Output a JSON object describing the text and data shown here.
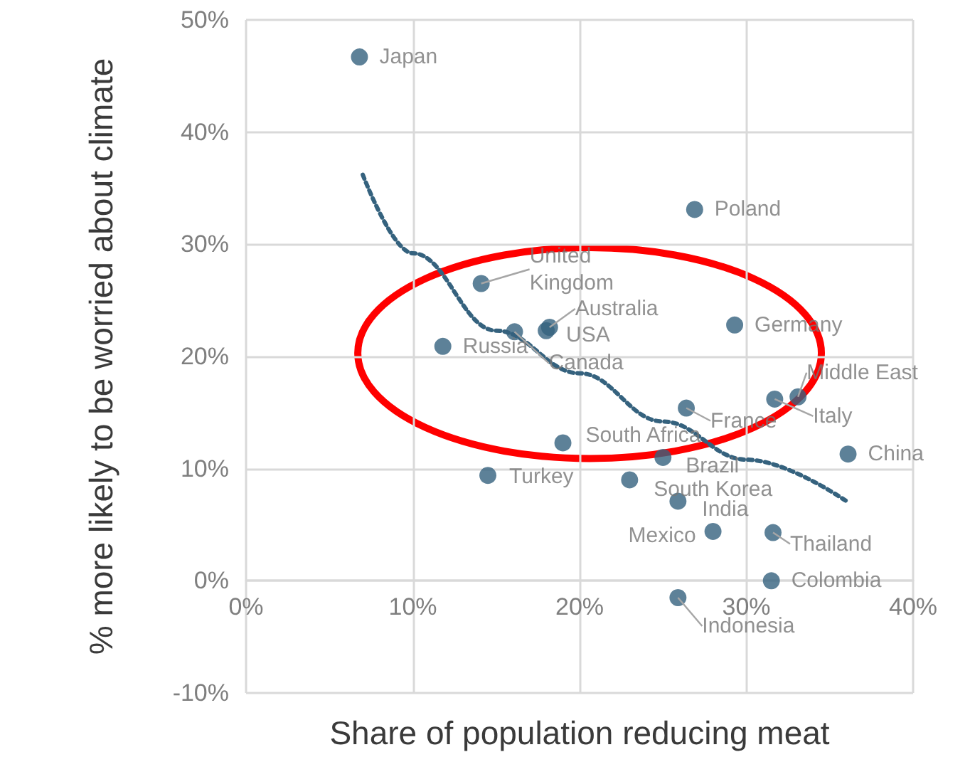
{
  "chart_data": {
    "type": "scatter",
    "xlabel": "Share of population reducing meat",
    "ylabel": "% more likely to be worried about climate",
    "xlim": [
      0,
      40
    ],
    "ylim": [
      -10,
      50
    ],
    "xticks": [
      {
        "value": 0,
        "label": "0%"
      },
      {
        "value": 10,
        "label": "10%"
      },
      {
        "value": 20,
        "label": "20%"
      },
      {
        "value": 30,
        "label": "30%"
      },
      {
        "value": 40,
        "label": "40%"
      }
    ],
    "yticks": [
      {
        "value": -10,
        "label": "-10%"
      },
      {
        "value": 0,
        "label": "0%"
      },
      {
        "value": 10,
        "label": "10%"
      },
      {
        "value": 20,
        "label": "20%"
      },
      {
        "value": 30,
        "label": "30%"
      },
      {
        "value": 40,
        "label": "40%"
      },
      {
        "value": 50,
        "label": "50%"
      }
    ],
    "grid": true,
    "marker": "circle",
    "series": [
      {
        "type": "scatter",
        "color": "#35627e",
        "x": [
          6.8,
          26.9,
          14.1,
          11.8,
          16.1,
          18.0,
          18.2,
          29.3,
          26.4,
          33.1,
          31.7,
          36.1,
          19.0,
          25.0,
          14.5,
          23.0,
          25.9,
          28.0,
          31.6,
          31.5,
          25.9
        ],
        "values": [
          46.7,
          33.1,
          26.5,
          20.9,
          22.2,
          22.3,
          22.6,
          22.8,
          15.4,
          16.4,
          16.2,
          11.3,
          12.3,
          11.0,
          9.4,
          9.0,
          7.1,
          4.4,
          4.3,
          0,
          -1.5
        ]
      },
      {
        "type": "line",
        "color": "#35627e",
        "line_style": "dotted",
        "marker": "none",
        "x": [
          7,
          10,
          15,
          20,
          25,
          30,
          36
        ],
        "values": [
          36.2,
          29.2,
          22.3,
          18.5,
          14.2,
          10.8,
          7.1
        ]
      }
    ],
    "annotations": [
      {
        "text": "Japan",
        "x": 6.8,
        "y": 46.7
      },
      {
        "text": "Poland",
        "x": 26.9,
        "y": 33.1
      },
      {
        "text": "United Kingdom",
        "x": 14.1,
        "y": 26.5
      },
      {
        "text": "Russia",
        "x": 11.8,
        "y": 20.9
      },
      {
        "text": "Canada",
        "x": 16.1,
        "y": 22.2
      },
      {
        "text": "USA",
        "x": 18.0,
        "y": 22.3
      },
      {
        "text": "Australia",
        "x": 18.2,
        "y": 22.6
      },
      {
        "text": "Germany",
        "x": 29.3,
        "y": 22.8
      },
      {
        "text": "France",
        "x": 26.4,
        "y": 15.4
      },
      {
        "text": "Middle East",
        "x": 33.1,
        "y": 16.4
      },
      {
        "text": "Italy",
        "x": 31.7,
        "y": 16.2
      },
      {
        "text": "China",
        "x": 36.1,
        "y": 11.3
      },
      {
        "text": "South Africa",
        "x": 19.0,
        "y": 12.3
      },
      {
        "text": "Brazil",
        "x": 25.0,
        "y": 11.0
      },
      {
        "text": "Turkey",
        "x": 14.5,
        "y": 9.4
      },
      {
        "text": "South Korea",
        "x": 23.0,
        "y": 9.0
      },
      {
        "text": "India",
        "x": 25.9,
        "y": 7.1
      },
      {
        "text": "Mexico",
        "x": 28.0,
        "y": 4.4
      },
      {
        "text": "Thailand",
        "x": 31.6,
        "y": 4.3
      },
      {
        "text": "Colombia",
        "x": 31.5,
        "y": 0
      },
      {
        "text": "Indonesia",
        "x": 25.9,
        "y": -1.5
      }
    ]
  }
}
